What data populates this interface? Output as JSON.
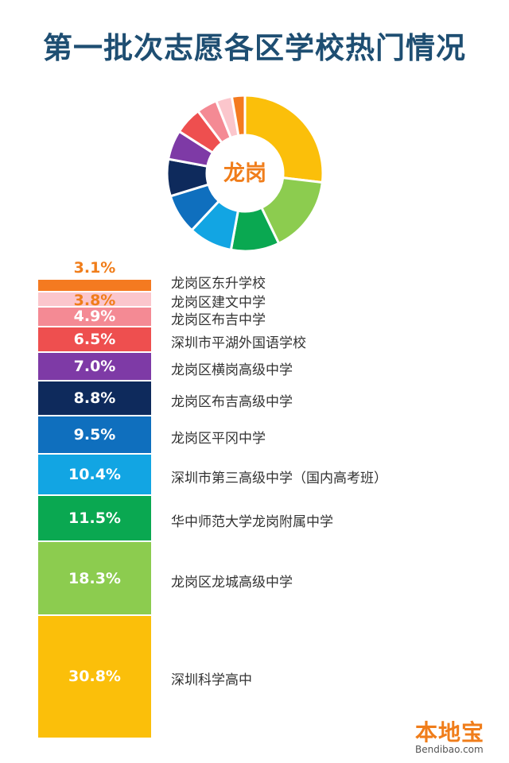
{
  "chart_data": {
    "type": "bar",
    "title": "第一批次志愿各区学校热门情况",
    "center_label": "龙岗",
    "unit": "%",
    "categories": [
      "龙岗区东升学校",
      "龙岗区建文中学",
      "龙岗区布吉中学",
      "深圳市平湖外国语学校",
      "龙岗区横岗高级中学",
      "龙岗区布吉高级中学",
      "龙岗区平冈中学",
      "深圳市第三高级中学（国内高考班）",
      "华中师范大学龙岗附属中学",
      "龙岗区龙城高级中学",
      "深圳科学高中"
    ],
    "values": [
      3.1,
      3.8,
      4.9,
      6.5,
      7.0,
      8.8,
      9.5,
      10.4,
      11.5,
      18.3,
      30.8
    ],
    "value_labels": [
      "3.1%",
      "3.8%",
      "4.9%",
      "6.5%",
      "7.0%",
      "8.8%",
      "9.5%",
      "10.4%",
      "11.5%",
      "18.3%",
      "30.8%"
    ],
    "colors": [
      "#f47a20",
      "#fbc6cc",
      "#f48a94",
      "#ee4f4f",
      "#7e3aa6",
      "#0e2a5c",
      "#0f6fbe",
      "#12a5e3",
      "#0aa851",
      "#8ccc4f",
      "#fbbf0a"
    ]
  },
  "watermark": {
    "brand": "本地宝",
    "site": "Bendibao.com"
  }
}
